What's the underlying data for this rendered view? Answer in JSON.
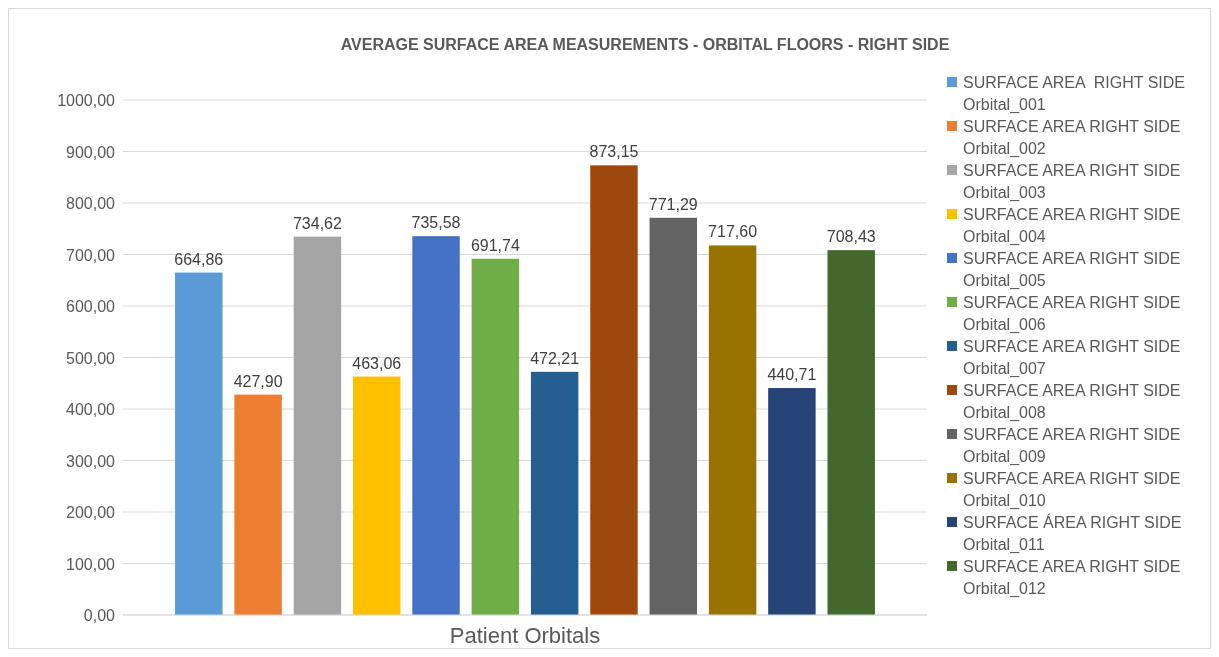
{
  "chart_data": {
    "type": "bar",
    "title": "AVERAGE SURFACE AREA MEASUREMENTS - ORBITAL FLOORS - RIGHT SIDE",
    "categories": [
      "Patient Orbitals"
    ],
    "series": [
      {
        "name": "SURFACE AREA  RIGHT SIDE Orbital_001",
        "color": "#5b9bd5",
        "values": [
          664.86
        ],
        "value_labels": [
          "664,86"
        ]
      },
      {
        "name": "SURFACE AREA RIGHT SIDE Orbital_002",
        "color": "#ed7d31",
        "values": [
          427.9
        ],
        "value_labels": [
          "427,90"
        ]
      },
      {
        "name": "SURFACE AREA RIGHT SIDE Orbital_003",
        "color": "#a5a5a5",
        "values": [
          734.62
        ],
        "value_labels": [
          "734,62"
        ]
      },
      {
        "name": "SURFACE AREA RIGHT SIDE Orbital_004",
        "color": "#ffc000",
        "values": [
          463.06
        ],
        "value_labels": [
          "463,06"
        ]
      },
      {
        "name": "SURFACE AREA RIGHT SIDE Orbital_005",
        "color": "#4472c4",
        "values": [
          735.58
        ],
        "value_labels": [
          "735,58"
        ]
      },
      {
        "name": "SURFACE AREA RIGHT SIDE Orbital_006",
        "color": "#70ad47",
        "values": [
          691.74
        ],
        "value_labels": [
          "691,74"
        ]
      },
      {
        "name": "SURFACE AREA RIGHT SIDE Orbital_007",
        "color": "#255e91",
        "values": [
          472.21
        ],
        "value_labels": [
          "472,21"
        ]
      },
      {
        "name": "SURFACE AREA RIGHT SIDE Orbital_008",
        "color": "#9e480e",
        "values": [
          873.15
        ],
        "value_labels": [
          "873,15"
        ]
      },
      {
        "name": "SURFACE AREA RIGHT SIDE Orbital_009",
        "color": "#636363",
        "values": [
          771.29
        ],
        "value_labels": [
          "771,29"
        ]
      },
      {
        "name": "SURFACE AREA RIGHT SIDE Orbital_010",
        "color": "#997300",
        "values": [
          717.6
        ],
        "value_labels": [
          "717,60"
        ]
      },
      {
        "name": "SURFACE ÁREA RIGHT SIDE Orbital_011",
        "color": "#264478",
        "values": [
          440.71
        ],
        "value_labels": [
          "440,71"
        ]
      },
      {
        "name": "SURFACE AREA RIGHT SIDE Orbital_012",
        "color": "#43682b",
        "values": [
          708.43
        ],
        "value_labels": [
          "708,43"
        ]
      }
    ],
    "ylim": [
      0,
      1000
    ],
    "yticks": [
      {
        "value": 0,
        "label": "0,00"
      },
      {
        "value": 100,
        "label": "100,00"
      },
      {
        "value": 200,
        "label": "200,00"
      },
      {
        "value": 300,
        "label": "300,00"
      },
      {
        "value": 400,
        "label": "400,00"
      },
      {
        "value": 500,
        "label": "500,00"
      },
      {
        "value": 600,
        "label": "600,00"
      },
      {
        "value": 700,
        "label": "700,00"
      },
      {
        "value": 800,
        "label": "800,00"
      },
      {
        "value": 900,
        "label": "900,00"
      },
      {
        "value": 1000,
        "label": "1000,00"
      }
    ],
    "grid": "y",
    "legend": "right"
  }
}
